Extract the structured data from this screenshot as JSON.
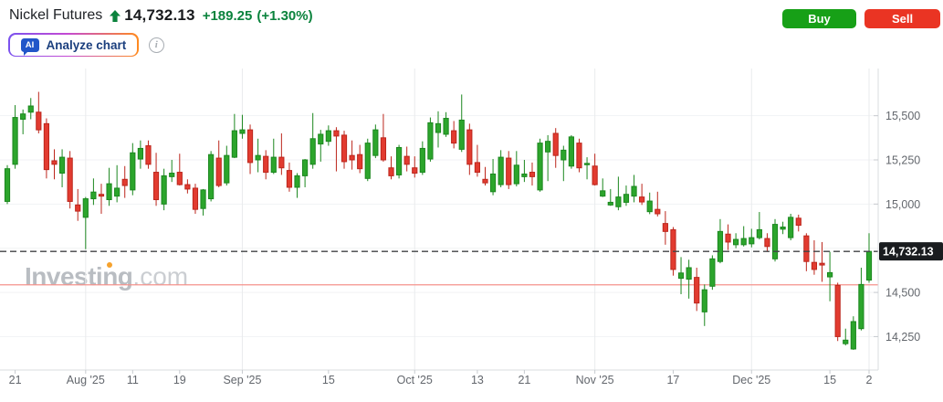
{
  "header": {
    "title": "Nickel Futures",
    "price": "14,732.13",
    "change": "+189.25",
    "change_pct": "(+1.30%)",
    "buy_label": "Buy",
    "sell_label": "Sell",
    "ai_badge": "AI",
    "analyze_label": "Analyze chart",
    "info_icon": "i"
  },
  "watermark": {
    "brand": "Investing",
    "tld": ".com"
  },
  "colors": {
    "buy_bg": "#17A017",
    "sell_bg": "#EA3423",
    "accent_green": "#0B833D",
    "title_text": "#1F2226",
    "price_text": "#17191C",
    "ai_grad_1": "#7A52EE",
    "ai_grad_2": "#C44AD4",
    "ai_grad_3": "#FF8A1E",
    "ai_badge_bg": "#2156C9",
    "ai_label_text": "#1B3F7E",
    "info_icon": "#A7ACB2",
    "up_fill": "#2CA52C",
    "up_stroke": "#1B871E",
    "down_fill": "#E23B30",
    "down_stroke": "#BC261C",
    "grid_line": "#F1F2F4",
    "month_grid_line": "#E9EBED",
    "axis_line": "#D9DCDF",
    "axis_text": "#63676D",
    "tick_mark": "#C7CBCF",
    "last_price_line": "#404346",
    "price_box_bg": "#1A1C1F",
    "price_box_text": "#FFFFFF",
    "prev_close_line": "#F4938C",
    "watermark_text": "#B9BDC2",
    "watermark_com": "#CBCED2",
    "watermark_dot": "#F6A22D"
  },
  "chart_data": {
    "type": "candlestick",
    "title": "Nickel Futures daily candlestick chart, Jul-Dec 2025",
    "last_price": 14732.13,
    "last_price_label": "14,732.13",
    "previous_close": 14542.88,
    "ylim": [
      14085,
      15770
    ],
    "grid": true,
    "y_gridlines": [
      15500,
      15250,
      15000,
      14750,
      14500,
      14250
    ],
    "y_axis_labels": [
      {
        "price": 15500,
        "label": "15,500"
      },
      {
        "price": 15250,
        "label": "15,250"
      },
      {
        "price": 15000,
        "label": "15,000"
      },
      {
        "price": 14500,
        "label": "14,500"
      },
      {
        "price": 14250,
        "label": "14,250"
      }
    ],
    "x_ticks": [
      {
        "i": 1,
        "label": "21",
        "month": false
      },
      {
        "i": 10,
        "label": "Aug '25",
        "month": true
      },
      {
        "i": 16,
        "label": "11",
        "month": false
      },
      {
        "i": 22,
        "label": "19",
        "month": false
      },
      {
        "i": 30,
        "label": "Sep '25",
        "month": true
      },
      {
        "i": 41,
        "label": "15",
        "month": false
      },
      {
        "i": 52,
        "label": "Oct '25",
        "month": true
      },
      {
        "i": 60,
        "label": "13",
        "month": false
      },
      {
        "i": 66,
        "label": "21",
        "month": false
      },
      {
        "i": 75,
        "label": "Nov '25",
        "month": true
      },
      {
        "i": 85,
        "label": "17",
        "month": false
      },
      {
        "i": 95,
        "label": "Dec '25",
        "month": true
      },
      {
        "i": 105,
        "label": "15",
        "month": false
      },
      {
        "i": 110,
        "label": "2",
        "month": true
      }
    ],
    "candles_format": [
      "open",
      "high",
      "low",
      "close"
    ],
    "candles": [
      [
        15015,
        15220,
        15000,
        15200
      ],
      [
        15225,
        15560,
        15200,
        15490
      ],
      [
        15480,
        15535,
        15395,
        15510
      ],
      [
        15520,
        15600,
        15480,
        15555
      ],
      [
        15520,
        15635,
        15400,
        15420
      ],
      [
        15455,
        15485,
        15145,
        15195
      ],
      [
        15245,
        15310,
        15140,
        15225
      ],
      [
        15175,
        15310,
        15095,
        15265
      ],
      [
        15260,
        15300,
        14975,
        15015
      ],
      [
        14995,
        15085,
        14905,
        14960
      ],
      [
        14925,
        15040,
        14745,
        15030
      ],
      [
        15030,
        15145,
        14995,
        15068
      ],
      [
        15055,
        15115,
        14945,
        15045
      ],
      [
        15025,
        15205,
        14990,
        15115
      ],
      [
        15045,
        15220,
        15010,
        15090
      ],
      [
        15140,
        15215,
        15035,
        15105
      ],
      [
        15080,
        15345,
        15050,
        15290
      ],
      [
        15255,
        15360,
        15200,
        15315
      ],
      [
        15330,
        15360,
        15200,
        15225
      ],
      [
        15180,
        15290,
        14990,
        15025
      ],
      [
        15000,
        15200,
        14965,
        15160
      ],
      [
        15155,
        15250,
        15125,
        15175
      ],
      [
        15180,
        15285,
        15105,
        15110
      ],
      [
        15110,
        15140,
        15060,
        15085
      ],
      [
        15090,
        15115,
        14945,
        14970
      ],
      [
        14975,
        15085,
        14935,
        15080
      ],
      [
        15030,
        15300,
        15015,
        15280
      ],
      [
        15260,
        15360,
        15095,
        15105
      ],
      [
        15120,
        15330,
        15105,
        15275
      ],
      [
        15265,
        15510,
        15260,
        15415
      ],
      [
        15400,
        15505,
        15370,
        15420
      ],
      [
        15420,
        15450,
        15170,
        15235
      ],
      [
        15250,
        15370,
        15180,
        15275
      ],
      [
        15270,
        15305,
        15140,
        15180
      ],
      [
        15180,
        15370,
        15170,
        15265
      ],
      [
        15265,
        15400,
        15165,
        15205
      ],
      [
        15190,
        15235,
        15070,
        15095
      ],
      [
        15095,
        15175,
        15035,
        15160
      ],
      [
        15160,
        15255,
        15095,
        15250
      ],
      [
        15225,
        15515,
        15200,
        15370
      ],
      [
        15340,
        15420,
        15240,
        15395
      ],
      [
        15355,
        15445,
        15330,
        15415
      ],
      [
        15415,
        15435,
        15185,
        15385
      ],
      [
        15390,
        15415,
        15200,
        15240
      ],
      [
        15275,
        15360,
        15195,
        15250
      ],
      [
        15280,
        15335,
        15175,
        15200
      ],
      [
        15145,
        15370,
        15130,
        15345
      ],
      [
        15275,
        15450,
        15260,
        15420
      ],
      [
        15375,
        15510,
        15240,
        15250
      ],
      [
        15205,
        15270,
        15140,
        15160
      ],
      [
        15165,
        15335,
        15145,
        15320
      ],
      [
        15270,
        15325,
        15185,
        15225
      ],
      [
        15205,
        15270,
        15150,
        15175
      ],
      [
        15180,
        15355,
        15165,
        15315
      ],
      [
        15255,
        15490,
        15240,
        15460
      ],
      [
        15405,
        15525,
        15320,
        15455
      ],
      [
        15395,
        15520,
        15380,
        15485
      ],
      [
        15415,
        15470,
        15315,
        15345
      ],
      [
        15310,
        15620,
        15295,
        15475
      ],
      [
        15420,
        15455,
        15165,
        15225
      ],
      [
        15235,
        15335,
        15155,
        15180
      ],
      [
        15140,
        15210,
        15105,
        15120
      ],
      [
        15070,
        15255,
        15050,
        15170
      ],
      [
        15110,
        15305,
        15095,
        15265
      ],
      [
        15260,
        15300,
        15085,
        15110
      ],
      [
        15115,
        15300,
        15100,
        15220
      ],
      [
        15155,
        15250,
        15125,
        15170
      ],
      [
        15180,
        15235,
        15105,
        15155
      ],
      [
        15080,
        15370,
        15070,
        15345
      ],
      [
        15295,
        15390,
        15130,
        15355
      ],
      [
        15400,
        15430,
        15205,
        15275
      ],
      [
        15250,
        15330,
        15130,
        15305
      ],
      [
        15215,
        15390,
        15200,
        15380
      ],
      [
        15345,
        15370,
        15180,
        15205
      ],
      [
        15225,
        15265,
        15140,
        15230
      ],
      [
        15215,
        15285,
        15105,
        15110
      ],
      [
        15045,
        15145,
        15040,
        15075
      ],
      [
        14995,
        15085,
        14990,
        15010
      ],
      [
        14985,
        15155,
        14965,
        15040
      ],
      [
        15010,
        15105,
        14990,
        15055
      ],
      [
        15045,
        15165,
        15010,
        15100
      ],
      [
        15040,
        15115,
        14995,
        15012
      ],
      [
        14957,
        15065,
        14943,
        15017
      ],
      [
        14970,
        15070,
        14930,
        14945
      ],
      [
        14890,
        14960,
        14770,
        14845
      ],
      [
        14855,
        14870,
        14595,
        14630
      ],
      [
        14580,
        14700,
        14490,
        14610
      ],
      [
        14575,
        14685,
        14465,
        14640
      ],
      [
        14585,
        14640,
        14395,
        14440
      ],
      [
        14390,
        14545,
        14310,
        14515
      ],
      [
        14535,
        14710,
        14515,
        14690
      ],
      [
        14675,
        14915,
        14665,
        14845
      ],
      [
        14830,
        14885,
        14740,
        14785
      ],
      [
        14770,
        14835,
        14750,
        14800
      ],
      [
        14770,
        14875,
        14760,
        14805
      ],
      [
        14775,
        14860,
        14755,
        14810
      ],
      [
        14810,
        14955,
        14800,
        14855
      ],
      [
        14805,
        14835,
        14730,
        14760
      ],
      [
        14690,
        14915,
        14675,
        14885
      ],
      [
        14858,
        14900,
        14830,
        14870
      ],
      [
        14810,
        14945,
        14795,
        14925
      ],
      [
        14920,
        14940,
        14845,
        14880
      ],
      [
        14820,
        14835,
        14620,
        14675
      ],
      [
        14670,
        14795,
        14600,
        14630
      ],
      [
        14665,
        14785,
        14560,
        14655
      ],
      [
        14588,
        14730,
        14450,
        14612
      ],
      [
        14540,
        14555,
        14225,
        14250
      ],
      [
        14210,
        14295,
        14200,
        14230
      ],
      [
        14180,
        14365,
        14175,
        14335
      ],
      [
        14295,
        14640,
        14285,
        14545
      ],
      [
        14570,
        14835,
        14555,
        14732.13
      ]
    ]
  }
}
